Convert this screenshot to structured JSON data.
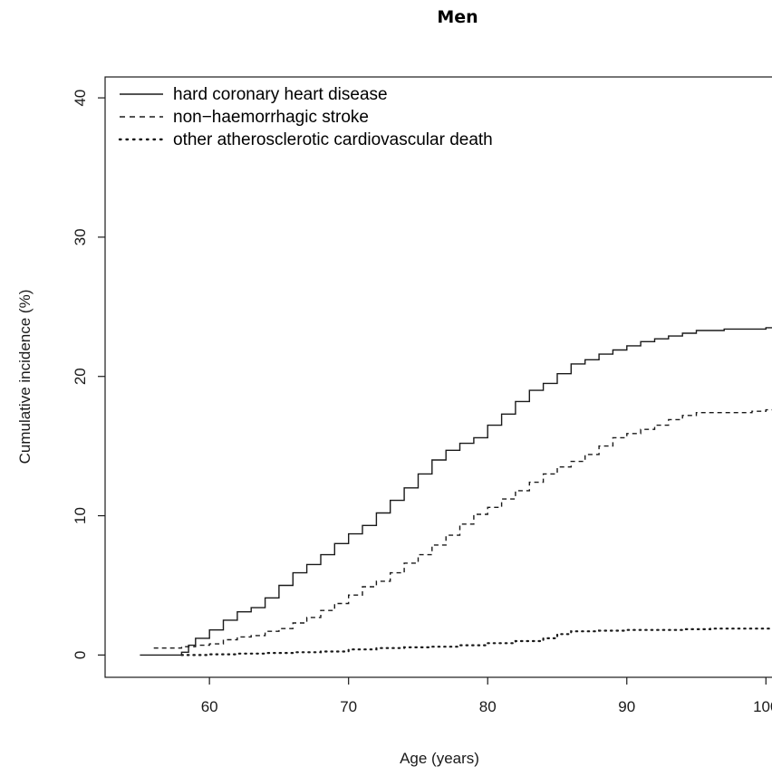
{
  "chart_data": {
    "type": "line",
    "title": "Men",
    "xlabel": "Age (years)",
    "ylabel": "Cumulative incidence (%)",
    "xlim": [
      52.5,
      102
    ],
    "ylim": [
      -1.6,
      41.5
    ],
    "xticks": [
      60,
      70,
      80,
      90,
      100
    ],
    "yticks": [
      0,
      10,
      20,
      30,
      40
    ],
    "legend_position": "top-left",
    "grid": false,
    "series": [
      {
        "name": "hard coronary heart disease",
        "line_style": "solid",
        "color": "#1a1a1a",
        "x": [
          55,
          57,
          58,
          58.5,
          59,
          60,
          61,
          62,
          63,
          64,
          65,
          66,
          67,
          68,
          69,
          70,
          71,
          72,
          73,
          74,
          75,
          76,
          77,
          78,
          79,
          80,
          81,
          82,
          83,
          84,
          85,
          86,
          87,
          88,
          89,
          90,
          91,
          92,
          93,
          94,
          95,
          96,
          97,
          98,
          99,
          100,
          101,
          102
        ],
        "y": [
          0,
          0,
          0.2,
          0.7,
          1.2,
          1.8,
          2.5,
          3.1,
          3.4,
          4.1,
          5.0,
          5.9,
          6.5,
          7.2,
          8.0,
          8.7,
          9.3,
          10.2,
          11.1,
          12.0,
          13.0,
          14.0,
          14.7,
          15.2,
          15.6,
          16.5,
          17.3,
          18.2,
          19.0,
          19.5,
          20.2,
          20.9,
          21.2,
          21.6,
          21.9,
          22.2,
          22.5,
          22.7,
          22.9,
          23.1,
          23.3,
          23.3,
          23.4,
          23.4,
          23.4,
          23.5,
          23.5,
          23.5
        ]
      },
      {
        "name": "non−haemorrhagic stroke",
        "line_style": "dashed",
        "color": "#1a1a1a",
        "x": [
          56,
          58,
          59,
          60,
          61,
          62,
          63,
          64,
          65,
          66,
          67,
          68,
          69,
          70,
          71,
          72,
          73,
          74,
          75,
          76,
          77,
          78,
          79,
          80,
          81,
          82,
          83,
          84,
          85,
          86,
          87,
          88,
          89,
          90,
          91,
          92,
          93,
          94,
          95,
          96,
          97,
          98,
          99,
          100,
          101,
          102
        ],
        "y": [
          0.5,
          0.6,
          0.7,
          0.8,
          1.1,
          1.3,
          1.4,
          1.7,
          1.9,
          2.3,
          2.7,
          3.2,
          3.7,
          4.3,
          4.9,
          5.3,
          5.9,
          6.6,
          7.2,
          7.9,
          8.6,
          9.4,
          10.1,
          10.6,
          11.2,
          11.8,
          12.4,
          13.0,
          13.5,
          13.9,
          14.4,
          15.0,
          15.6,
          15.9,
          16.2,
          16.5,
          16.9,
          17.2,
          17.4,
          17.4,
          17.4,
          17.4,
          17.5,
          17.6,
          17.7,
          17.8
        ]
      },
      {
        "name": "other atherosclerotic cardiovascular death",
        "line_style": "dotted",
        "color": "#1a1a1a",
        "x": [
          58,
          60,
          62,
          64,
          66,
          68,
          70,
          72,
          74,
          76,
          78,
          80,
          82,
          84,
          85,
          86,
          88,
          90,
          92,
          94,
          96,
          98,
          100,
          102
        ],
        "y": [
          0,
          0.05,
          0.1,
          0.15,
          0.2,
          0.25,
          0.4,
          0.5,
          0.55,
          0.6,
          0.7,
          0.85,
          1.0,
          1.2,
          1.5,
          1.7,
          1.75,
          1.8,
          1.8,
          1.85,
          1.9,
          1.9,
          1.9,
          1.9
        ]
      }
    ]
  }
}
